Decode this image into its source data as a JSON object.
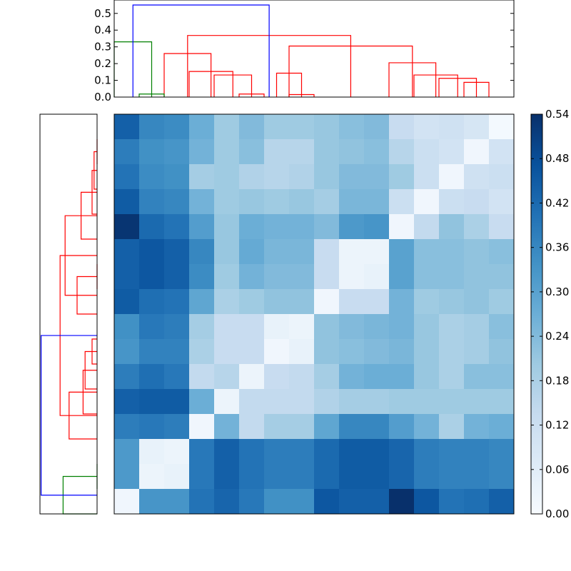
{
  "chart_data": [
    {
      "type": "dendrogram",
      "orientation": "top",
      "ylim": [
        0,
        0.58
      ],
      "yticks": [
        0.0,
        0.1,
        0.2,
        0.3,
        0.4,
        0.5
      ],
      "ytick_labels": [
        "0.0",
        "0.1",
        "0.2",
        "0.3",
        "0.4",
        "0.5"
      ],
      "leaf_count": 16,
      "colors": {
        "blue": "#0000ff",
        "red": "#ff0000",
        "green": "#008000"
      },
      "links": [
        {
          "a": 4.5,
          "b": 5.5,
          "h": 0.018,
          "c": "red"
        },
        {
          "a": 6.5,
          "b": 7.5,
          "h": 0.015,
          "c": "red"
        },
        {
          "a": 13.5,
          "b": 14.5,
          "h": 0.088,
          "c": "red"
        },
        {
          "a": 12.5,
          "b": 14.0,
          "h": 0.112,
          "c": "red"
        },
        {
          "a": 11.5,
          "b": 13.25,
          "h": 0.132,
          "c": "red"
        },
        {
          "a": 6.0,
          "b": 7.0,
          "h": 0.143,
          "c": "red"
        },
        {
          "a": 10.5,
          "b": 12.375,
          "h": 0.205,
          "c": "red"
        },
        {
          "a": 3.5,
          "b": 5.0,
          "h": 0.132,
          "c": "red"
        },
        {
          "a": 2.5,
          "b": 4.25,
          "h": 0.153,
          "c": "red"
        },
        {
          "a": 1.5,
          "b": 3.375,
          "h": 0.26,
          "c": "red"
        },
        {
          "a": 6.5,
          "b": 11.4375,
          "h": 0.305,
          "c": "red"
        },
        {
          "a": 2.4375,
          "b": 8.96875,
          "h": 0.368,
          "c": "red"
        },
        {
          "a": 0.5,
          "b": 1.5,
          "h": 0.018,
          "c": "green"
        },
        {
          "a": -0.5,
          "b": 1.0,
          "h": 0.33,
          "c": "green"
        },
        {
          "a": 0.25,
          "b": 5.703125,
          "h": 0.55,
          "c": "blue"
        }
      ]
    },
    {
      "type": "dendrogram",
      "orientation": "left",
      "leaf_count": 16,
      "colors": {
        "blue": "#0000ff",
        "red": "#ff0000",
        "green": "#008000"
      },
      "links": [
        {
          "a": 0.5,
          "b": 1.5,
          "d": 0.0,
          "c": "red"
        },
        {
          "a": 1.0,
          "b": 2.5,
          "d": 0.03,
          "c": "red"
        },
        {
          "a": 1.75,
          "b": 3.5,
          "d": 0.05,
          "c": "red"
        },
        {
          "a": 2.625,
          "b": 4.5,
          "d": 0.16,
          "c": "red"
        },
        {
          "a": 5.5,
          "b": 6.5,
          "d": 0.0,
          "c": "red"
        },
        {
          "a": 6.0,
          "b": 7.5,
          "d": 0.2,
          "c": "red"
        },
        {
          "a": 3.5625,
          "b": 6.75,
          "d": 0.32,
          "c": "red"
        },
        {
          "a": 8.5,
          "b": 9.5,
          "d": 0.05,
          "c": "red"
        },
        {
          "a": 9.0,
          "b": 10.5,
          "d": 0.12,
          "c": "red"
        },
        {
          "a": 9.75,
          "b": 11.5,
          "d": 0.14,
          "c": "red"
        },
        {
          "a": 10.625,
          "b": 12.5,
          "d": 0.28,
          "c": "red"
        },
        {
          "a": 5.15625,
          "b": 11.5625,
          "d": 0.37,
          "c": "red"
        },
        {
          "a": 13.5,
          "b": 14.5,
          "d": 0.0,
          "c": "green"
        },
        {
          "a": 14.0,
          "b": 15.5,
          "d": 0.34,
          "c": "green"
        },
        {
          "a": 8.359375,
          "b": 14.75,
          "d": 0.56,
          "c": "blue"
        }
      ]
    },
    {
      "type": "heatmap",
      "rows": 16,
      "cols": 16,
      "vmin": 0.0,
      "vmax": 0.54,
      "colormap": "Blues",
      "values": [
        [
          0.44,
          0.36,
          0.35,
          0.27,
          0.2,
          0.24,
          0.2,
          0.2,
          0.21,
          0.23,
          0.24,
          0.13,
          0.1,
          0.11,
          0.09,
          0.01
        ],
        [
          0.38,
          0.34,
          0.33,
          0.26,
          0.2,
          0.23,
          0.16,
          0.16,
          0.21,
          0.22,
          0.23,
          0.16,
          0.12,
          0.1,
          0.02,
          0.1
        ],
        [
          0.4,
          0.35,
          0.34,
          0.19,
          0.2,
          0.17,
          0.16,
          0.17,
          0.21,
          0.24,
          0.24,
          0.2,
          0.12,
          0.02,
          0.11,
          0.12
        ],
        [
          0.45,
          0.37,
          0.36,
          0.26,
          0.2,
          0.21,
          0.2,
          0.21,
          0.19,
          0.25,
          0.25,
          0.12,
          0.02,
          0.12,
          0.13,
          0.1
        ],
        [
          0.53,
          0.42,
          0.4,
          0.31,
          0.21,
          0.27,
          0.26,
          0.26,
          0.24,
          0.32,
          0.33,
          0.02,
          0.14,
          0.22,
          0.18,
          0.13
        ],
        [
          0.44,
          0.46,
          0.44,
          0.36,
          0.21,
          0.28,
          0.25,
          0.25,
          0.13,
          0.03,
          0.03,
          0.3,
          0.23,
          0.23,
          0.22,
          0.23
        ],
        [
          0.44,
          0.46,
          0.44,
          0.35,
          0.2,
          0.26,
          0.24,
          0.24,
          0.13,
          0.03,
          0.04,
          0.3,
          0.23,
          0.23,
          0.22,
          0.22
        ],
        [
          0.45,
          0.41,
          0.4,
          0.29,
          0.18,
          0.2,
          0.22,
          0.22,
          0.02,
          0.13,
          0.13,
          0.26,
          0.2,
          0.21,
          0.22,
          0.2
        ],
        [
          0.34,
          0.39,
          0.38,
          0.19,
          0.13,
          0.13,
          0.04,
          0.03,
          0.22,
          0.24,
          0.25,
          0.26,
          0.21,
          0.18,
          0.19,
          0.23
        ],
        [
          0.33,
          0.37,
          0.37,
          0.18,
          0.13,
          0.13,
          0.02,
          0.04,
          0.22,
          0.23,
          0.24,
          0.25,
          0.21,
          0.18,
          0.19,
          0.22
        ],
        [
          0.38,
          0.41,
          0.39,
          0.14,
          0.16,
          0.03,
          0.13,
          0.14,
          0.19,
          0.26,
          0.27,
          0.27,
          0.21,
          0.18,
          0.23,
          0.23
        ],
        [
          0.44,
          0.45,
          0.45,
          0.27,
          0.03,
          0.14,
          0.14,
          0.14,
          0.17,
          0.19,
          0.19,
          0.2,
          0.2,
          0.2,
          0.2,
          0.2
        ],
        [
          0.38,
          0.39,
          0.38,
          0.02,
          0.26,
          0.14,
          0.19,
          0.19,
          0.29,
          0.36,
          0.36,
          0.31,
          0.26,
          0.18,
          0.26,
          0.27
        ],
        [
          0.32,
          0.04,
          0.03,
          0.39,
          0.44,
          0.4,
          0.38,
          0.38,
          0.42,
          0.45,
          0.45,
          0.43,
          0.38,
          0.37,
          0.37,
          0.36
        ],
        [
          0.32,
          0.03,
          0.04,
          0.39,
          0.44,
          0.4,
          0.38,
          0.38,
          0.42,
          0.45,
          0.45,
          0.43,
          0.38,
          0.37,
          0.37,
          0.36
        ],
        [
          0.02,
          0.33,
          0.33,
          0.4,
          0.43,
          0.39,
          0.34,
          0.34,
          0.46,
          0.44,
          0.44,
          0.54,
          0.46,
          0.4,
          0.41,
          0.44
        ]
      ]
    },
    {
      "type": "colorbar",
      "vmin": 0.0,
      "vmax": 0.54,
      "ticks": [
        0.0,
        0.06,
        0.12,
        0.18,
        0.24,
        0.3,
        0.36,
        0.42,
        0.48,
        0.54
      ],
      "tick_labels": [
        "0.00",
        "0.06",
        "0.12",
        "0.18",
        "0.24",
        "0.30",
        "0.36",
        "0.42",
        "0.48",
        "0.54"
      ]
    }
  ]
}
